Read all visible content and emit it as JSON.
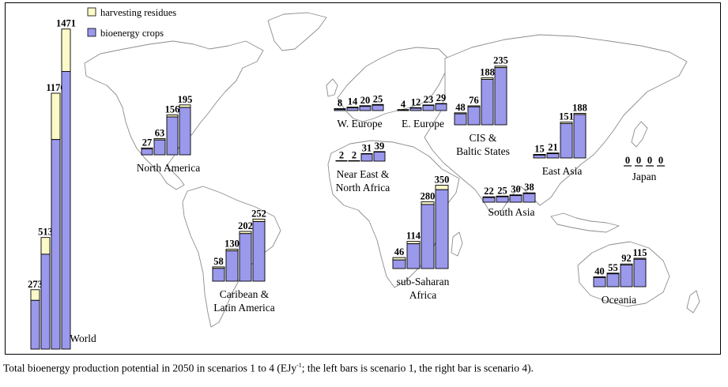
{
  "caption": {
    "main": "Total bioenergy production potential in 2050 in scenarios 1 to 4 (EJy",
    "sup": "-1",
    "rest": "; the left bars is scenario 1, the right bar is scenario 4)."
  },
  "colors": {
    "bioenergy_crops": "#9b99ec",
    "harvesting_residues": "#fdfac9",
    "map_land": "#ffffff",
    "map_outline": "#8c8c8c"
  },
  "chart_data": {
    "type": "bar",
    "title": "",
    "legend": {
      "placement": "top-left",
      "entries": [
        "harvesting residues",
        "bioenergy crops"
      ]
    },
    "scenarios": [
      "1",
      "2",
      "3",
      "4"
    ],
    "regions": [
      {
        "name": "World",
        "totals": [
          273,
          513,
          1176,
          1471
        ],
        "crops": [
          224,
          436,
          963,
          1276
        ]
      },
      {
        "name": "North America",
        "label_lines": [
          "North America"
        ],
        "totals": [
          27,
          63,
          156,
          195
        ],
        "crops": [
          23,
          58,
          148,
          185
        ]
      },
      {
        "name": "Caribean & Latin America",
        "label_lines": [
          "Caribean &",
          "Latin America"
        ],
        "totals": [
          58,
          130,
          202,
          252
        ],
        "crops": [
          52,
          123,
          193,
          242
        ]
      },
      {
        "name": "W. Europe",
        "label_lines": [
          "W. Europe"
        ],
        "totals": [
          8,
          14,
          20,
          25
        ],
        "crops": [
          5,
          11,
          17,
          22
        ]
      },
      {
        "name": "E. Europe",
        "label_lines": [
          "E. Europe"
        ],
        "totals": [
          4,
          12,
          23,
          29
        ],
        "crops": [
          3,
          10,
          21,
          27
        ]
      },
      {
        "name": "CIS & Baltic States",
        "label_lines": [
          "CIS &",
          "Baltic States"
        ],
        "totals": [
          48,
          76,
          188,
          235
        ],
        "crops": [
          44,
          72,
          182,
          229
        ]
      },
      {
        "name": "Near East & North Africa",
        "label_lines": [
          "Near East &",
          "North Africa"
        ],
        "totals": [
          2,
          2,
          31,
          39
        ],
        "crops": [
          1,
          1,
          29,
          37
        ]
      },
      {
        "name": "sub-Saharan Africa",
        "label_lines": [
          "sub-Saharan",
          "Africa"
        ],
        "totals": [
          46,
          114,
          280,
          350
        ],
        "crops": [
          36,
          104,
          269,
          331
        ]
      },
      {
        "name": "East Asia",
        "label_lines": [
          "East Asia"
        ],
        "totals": [
          15,
          21,
          151,
          188
        ],
        "crops": [
          12,
          18,
          145,
          183
        ]
      },
      {
        "name": "Japan",
        "label_lines": [
          "Japan"
        ],
        "totals": [
          0,
          0,
          0,
          0
        ],
        "crops": [
          0,
          0,
          0,
          0
        ]
      },
      {
        "name": "South Asia",
        "label_lines": [
          "South Asia"
        ],
        "totals": [
          22,
          25,
          30,
          38
        ],
        "crops": [
          19,
          22,
          27,
          35
        ]
      },
      {
        "name": "Oceania",
        "label_lines": [
          "Oceania"
        ],
        "totals": [
          40,
          55,
          92,
          115
        ],
        "crops": [
          37,
          52,
          88,
          111
        ]
      }
    ]
  }
}
